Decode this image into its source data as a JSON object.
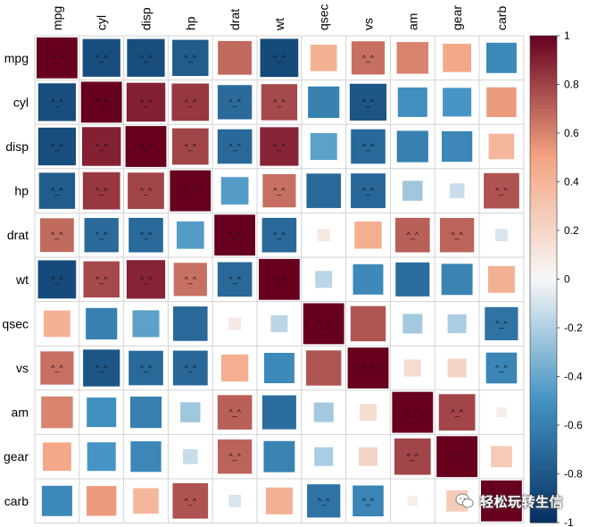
{
  "chart_data": {
    "type": "heatmap",
    "variables": [
      "mpg",
      "cyl",
      "disp",
      "hp",
      "drat",
      "wt",
      "qsec",
      "vs",
      "am",
      "gear",
      "carb"
    ],
    "matrix": [
      [
        1.0,
        -0.85,
        -0.85,
        -0.78,
        0.68,
        -0.87,
        0.42,
        0.66,
        0.6,
        0.48,
        -0.55
      ],
      [
        -0.85,
        1.0,
        0.9,
        0.83,
        -0.7,
        0.78,
        -0.59,
        -0.81,
        -0.52,
        -0.49,
        0.53
      ],
      [
        -0.85,
        0.9,
        1.0,
        0.79,
        -0.71,
        0.89,
        -0.43,
        -0.71,
        -0.59,
        -0.56,
        0.39
      ],
      [
        -0.78,
        0.83,
        0.79,
        1.0,
        -0.45,
        0.66,
        -0.71,
        -0.72,
        -0.24,
        -0.13,
        0.75
      ],
      [
        0.68,
        -0.7,
        -0.71,
        -0.45,
        1.0,
        -0.71,
        0.09,
        0.44,
        0.71,
        0.7,
        -0.09
      ],
      [
        -0.87,
        0.78,
        0.89,
        0.66,
        -0.71,
        1.0,
        -0.17,
        -0.55,
        -0.69,
        -0.58,
        0.43
      ],
      [
        0.42,
        -0.59,
        -0.43,
        -0.71,
        0.09,
        -0.17,
        1.0,
        0.74,
        -0.23,
        -0.21,
        -0.66
      ],
      [
        0.66,
        -0.81,
        -0.71,
        -0.72,
        0.44,
        -0.55,
        0.74,
        1.0,
        0.17,
        0.21,
        -0.57
      ],
      [
        0.6,
        -0.52,
        -0.59,
        -0.24,
        0.71,
        -0.69,
        -0.23,
        0.17,
        1.0,
        0.79,
        0.06
      ],
      [
        0.48,
        -0.49,
        -0.56,
        -0.13,
        0.7,
        -0.58,
        -0.21,
        0.21,
        0.79,
        1.0,
        0.27
      ],
      [
        -0.55,
        0.53,
        0.39,
        0.75,
        -0.09,
        0.43,
        -0.66,
        -0.57,
        0.06,
        0.27,
        1.0
      ]
    ],
    "significance_mark": "^_^",
    "marked_cells": [
      [
        0,
        0
      ],
      [
        0,
        1
      ],
      [
        0,
        2
      ],
      [
        0,
        3
      ],
      [
        0,
        5
      ],
      [
        0,
        7
      ],
      [
        1,
        0
      ],
      [
        1,
        1
      ],
      [
        1,
        2
      ],
      [
        1,
        3
      ],
      [
        1,
        4
      ],
      [
        1,
        5
      ],
      [
        1,
        7
      ],
      [
        2,
        0
      ],
      [
        2,
        1
      ],
      [
        2,
        2
      ],
      [
        2,
        3
      ],
      [
        2,
        4
      ],
      [
        2,
        5
      ],
      [
        2,
        7
      ],
      [
        3,
        0
      ],
      [
        3,
        1
      ],
      [
        3,
        2
      ],
      [
        3,
        3
      ],
      [
        3,
        5
      ],
      [
        3,
        7
      ],
      [
        3,
        10
      ],
      [
        4,
        0
      ],
      [
        4,
        1
      ],
      [
        4,
        2
      ],
      [
        4,
        4
      ],
      [
        4,
        5
      ],
      [
        4,
        8
      ],
      [
        4,
        9
      ],
      [
        5,
        0
      ],
      [
        5,
        1
      ],
      [
        5,
        2
      ],
      [
        5,
        3
      ],
      [
        5,
        4
      ],
      [
        5,
        5
      ],
      [
        6,
        6
      ],
      [
        6,
        10
      ],
      [
        7,
        0
      ],
      [
        7,
        1
      ],
      [
        7,
        2
      ],
      [
        7,
        3
      ],
      [
        7,
        7
      ],
      [
        7,
        10
      ],
      [
        8,
        4
      ],
      [
        8,
        8
      ],
      [
        8,
        9
      ],
      [
        9,
        4
      ],
      [
        9,
        8
      ],
      [
        9,
        9
      ],
      [
        10,
        3
      ],
      [
        10,
        6
      ],
      [
        10,
        7
      ],
      [
        10,
        10
      ]
    ],
    "colorbar": {
      "range": [
        -1,
        1
      ],
      "ticks": [
        "1",
        "0.8",
        "0.6",
        "0.4",
        "0.2",
        "0",
        "-0.2",
        "-0.4",
        "-0.6",
        "-0.8",
        "-1"
      ],
      "colors": {
        "neg": "#053061",
        "negMid": "#4393C3",
        "zero": "#F7F7F7",
        "posMid": "#F4A582",
        "pos": "#67001F"
      }
    },
    "grid": true,
    "legend": "right"
  },
  "watermark": {
    "text": "轻松玩转生信",
    "icon": "wechat-icon"
  }
}
